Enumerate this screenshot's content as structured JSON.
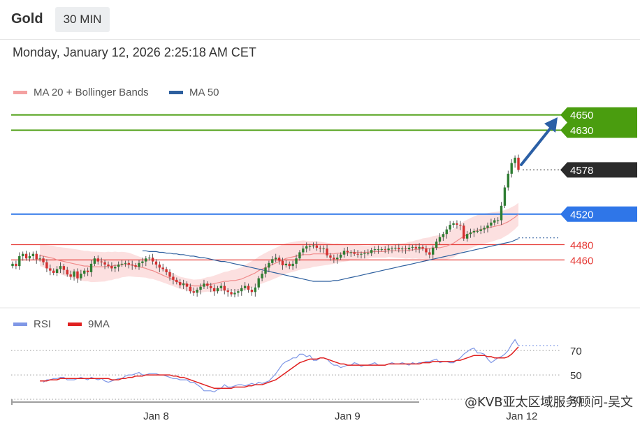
{
  "header": {
    "instrument": "Gold",
    "timeframe": "30 MIN"
  },
  "timestamp": "Monday, January 12, 2026 2:25:18 AM CET",
  "legend_main": [
    {
      "label": "MA 20 + Bollinger Bands",
      "color": "#f4a1a1"
    },
    {
      "label": "MA 50",
      "color": "#2d5f9e"
    }
  ],
  "legend_rsi": [
    {
      "label": "RSI",
      "color": "#7f97e6"
    },
    {
      "label": "9MA",
      "color": "#e02020"
    }
  ],
  "watermark": "@KVB亚太区域服务顾问-吴文",
  "chart_data": {
    "type": "candlestick",
    "instrument": "Gold",
    "timeframe": "30 MIN",
    "y_range": [
      4400,
      4668
    ],
    "x_ticks": [
      {
        "label": "Jan 8",
        "index": 42
      },
      {
        "label": "Jan 9",
        "index": 98
      },
      {
        "label": "Jan 12",
        "index": 149
      }
    ],
    "levels": [
      {
        "value": 4650,
        "label": "4650",
        "kind": "resistance",
        "color": "#4a9d0f"
      },
      {
        "value": 4630,
        "label": "4630",
        "kind": "resistance",
        "color": "#4a9d0f"
      },
      {
        "value": 4578,
        "label": "4578",
        "kind": "current",
        "color": "#2b2b2b"
      },
      {
        "value": 4520,
        "label": "4520",
        "kind": "pivot",
        "color": "#2f76e8"
      },
      {
        "value": 4480,
        "label": "4480",
        "kind": "support",
        "color": "#e53935"
      },
      {
        "value": 4460,
        "label": "4460",
        "kind": "support",
        "color": "#e53935"
      }
    ],
    "series": [
      {
        "name": "Price",
        "close": [
          4455,
          4452,
          4465,
          4468,
          4462,
          4465,
          4468,
          4461,
          4462,
          4457,
          4449,
          4446,
          4443,
          4448,
          4452,
          4447,
          4441,
          4438,
          4445,
          4436,
          4442,
          4446,
          4444,
          4455,
          4462,
          4458,
          4457,
          4454,
          4452,
          4449,
          4451,
          4454,
          4455,
          4456,
          4454,
          4453,
          4451,
          4456,
          4458,
          4462,
          4463,
          4458,
          4454,
          4450,
          4448,
          4444,
          4438,
          4434,
          4431,
          4427,
          4429,
          4425,
          4419,
          4417,
          4421,
          4425,
          4429,
          4426,
          4423,
          4419,
          4423,
          4426,
          4420,
          4418,
          4415,
          4417,
          4419,
          4423,
          4426,
          4421,
          4418,
          4424,
          4436,
          4442,
          4450,
          4456,
          4461,
          4463,
          4459,
          4453,
          4455,
          4452,
          4455,
          4462,
          4470,
          4475,
          4478,
          4478,
          4479,
          4476,
          4475,
          4475,
          4466,
          4463,
          4461,
          4463,
          4467,
          4472,
          4470,
          4470,
          4468,
          4467,
          4468,
          4469,
          4469,
          4473,
          4474,
          4474,
          4474,
          4473,
          4475,
          4475,
          4476,
          4474,
          4475,
          4474,
          4476,
          4477,
          4475,
          4477,
          4475,
          4470,
          4467,
          4476,
          4484,
          4490,
          4494,
          4500,
          4506,
          4508,
          4506,
          4505,
          4488,
          4494,
          4496,
          4498,
          4498,
          4500,
          4502,
          4505,
          4509,
          4512,
          4512,
          4531,
          4555,
          4573,
          4587,
          4594,
          4578
        ]
      },
      {
        "name": "MA 20",
        "values": [
          4466,
          4465,
          4464,
          4463,
          4462,
          4460,
          4459,
          4458,
          4457,
          4456,
          4455,
          4454,
          4453,
          4452,
          4452,
          4451,
          4451,
          4451,
          4451,
          4451,
          4452,
          4452,
          4453,
          4453,
          4454,
          4454,
          4454,
          4453,
          4452,
          4451,
          4450,
          4449,
          4447,
          4446,
          4444,
          4442,
          4440,
          4438,
          4436,
          4434,
          4432,
          4430,
          4429,
          4428,
          4427,
          4426,
          4426,
          4426,
          4427,
          4428,
          4428,
          4429,
          4430,
          4431,
          4432,
          4432,
          4433,
          4433,
          4434,
          4435,
          4437,
          4439,
          4441,
          4443,
          4446,
          4448,
          4450,
          4452,
          4454,
          4456,
          4458,
          4460,
          4462,
          4463,
          4464,
          4465,
          4466,
          4467,
          4467,
          4467,
          4468,
          4468,
          4468,
          4468,
          4468,
          4468,
          4468,
          4469,
          4469,
          4469,
          4469,
          4470,
          4470,
          4470,
          4470,
          4470,
          4470,
          4471,
          4471,
          4471,
          4471,
          4471,
          4472,
          4472,
          4472,
          4472,
          4472,
          4472,
          4473,
          4473,
          4474,
          4474,
          4475,
          4475,
          4475,
          4476,
          4476,
          4476,
          4477,
          4478,
          4480,
          4482,
          4485,
          4488,
          4491,
          4493,
          4495,
          4497,
          4499,
          4500,
          4501,
          4502,
          4503,
          4504,
          4505,
          4506,
          4508,
          4510,
          4513,
          4516,
          4520
        ]
      },
      {
        "name": "MA 50",
        "values": [
          4472,
          4472,
          4471,
          4471,
          4471,
          4470,
          4470,
          4469,
          4469,
          4468,
          4468,
          4467,
          4467,
          4466,
          4465,
          4465,
          4464,
          4463,
          4463,
          4462,
          4461,
          4460,
          4459,
          4458,
          4458,
          4457,
          4456,
          4455,
          4454,
          4453,
          4452,
          4451,
          4450,
          4449,
          4448,
          4447,
          4446,
          4445,
          4444,
          4443,
          4442,
          4441,
          4440,
          4439,
          4438,
          4437,
          4436,
          4435,
          4434,
          4433,
          4432,
          4432,
          4432,
          4432,
          4432,
          4432,
          4433,
          4433,
          4434,
          4435,
          4436,
          4437,
          4438,
          4439,
          4440,
          4441,
          4442,
          4443,
          4444,
          4445,
          4446,
          4447,
          4448,
          4449,
          4450,
          4451,
          4452,
          4453,
          4454,
          4455,
          4456,
          4457,
          4458,
          4459,
          4460,
          4461,
          4462,
          4463,
          4464,
          4465,
          4466,
          4467,
          4468,
          4469,
          4470,
          4471,
          4472,
          4473,
          4474,
          4475,
          4476,
          4477,
          4478,
          4479,
          4480,
          4481,
          4482,
          4483,
          4484,
          4486,
          4488
        ]
      },
      {
        "name": "RSI",
        "range": [
          30,
          85
        ],
        "values": [
          44,
          46,
          46,
          47,
          47,
          48,
          48,
          46,
          46,
          46,
          47,
          48,
          47,
          46,
          48,
          47,
          46,
          47,
          45,
          44,
          45,
          46,
          47,
          47,
          49,
          50,
          50,
          51,
          52,
          50,
          50,
          51,
          51,
          51,
          50,
          50,
          49,
          48,
          47,
          47,
          46,
          46,
          46,
          44,
          44,
          42,
          40,
          37,
          37,
          37,
          36,
          38,
          39,
          42,
          40,
          40,
          41,
          42,
          42,
          41,
          42,
          43,
          42,
          44,
          43,
          44,
          45,
          48,
          51,
          55,
          59,
          61,
          62,
          64,
          64,
          67,
          67,
          65,
          66,
          62,
          62,
          64,
          64,
          63,
          60,
          58,
          58,
          56,
          57,
          58,
          58,
          60,
          59,
          57,
          58,
          58,
          59,
          60,
          58,
          58,
          58,
          59,
          60,
          59,
          59,
          60,
          59,
          58,
          60,
          59,
          60,
          60,
          61,
          61,
          62,
          63,
          60,
          61,
          61,
          60,
          60,
          62,
          64,
          67,
          69,
          71,
          72,
          68,
          68,
          67,
          63,
          60,
          62,
          64,
          65,
          67,
          70,
          75,
          79,
          74
        ]
      },
      {
        "name": "9MA",
        "values": [
          45,
          45,
          45,
          46,
          46,
          46,
          47,
          47,
          47,
          47,
          47,
          47,
          47,
          47,
          47,
          47,
          47,
          47,
          47,
          47,
          47,
          46,
          46,
          46,
          47,
          47,
          48,
          48,
          49,
          49,
          49,
          50,
          50,
          50,
          50,
          50,
          50,
          50,
          50,
          49,
          49,
          48,
          48,
          47,
          46,
          45,
          44,
          43,
          42,
          41,
          40,
          39,
          39,
          39,
          39,
          39,
          39,
          40,
          40,
          40,
          40,
          41,
          41,
          42,
          42,
          42,
          43,
          44,
          45,
          46,
          48,
          50,
          52,
          54,
          56,
          58,
          60,
          61,
          62,
          63,
          63,
          63,
          64,
          64,
          63,
          62,
          61,
          60,
          59,
          59,
          58,
          58,
          58,
          58,
          58,
          58,
          58,
          58,
          58,
          58,
          58,
          58,
          59,
          59,
          59,
          59,
          59,
          59,
          59,
          59,
          59,
          59,
          60,
          60,
          60,
          61,
          61,
          61,
          61,
          61,
          61,
          61,
          62,
          62,
          63,
          64,
          65,
          66,
          66,
          66,
          66,
          65,
          65,
          64,
          64,
          64,
          64,
          65,
          67,
          70,
          73
        ]
      }
    ],
    "rsi_levels": [
      {
        "value": 70,
        "label": "70"
      },
      {
        "value": 50,
        "label": "50"
      },
      {
        "value": 30,
        "label": "30"
      }
    ]
  }
}
